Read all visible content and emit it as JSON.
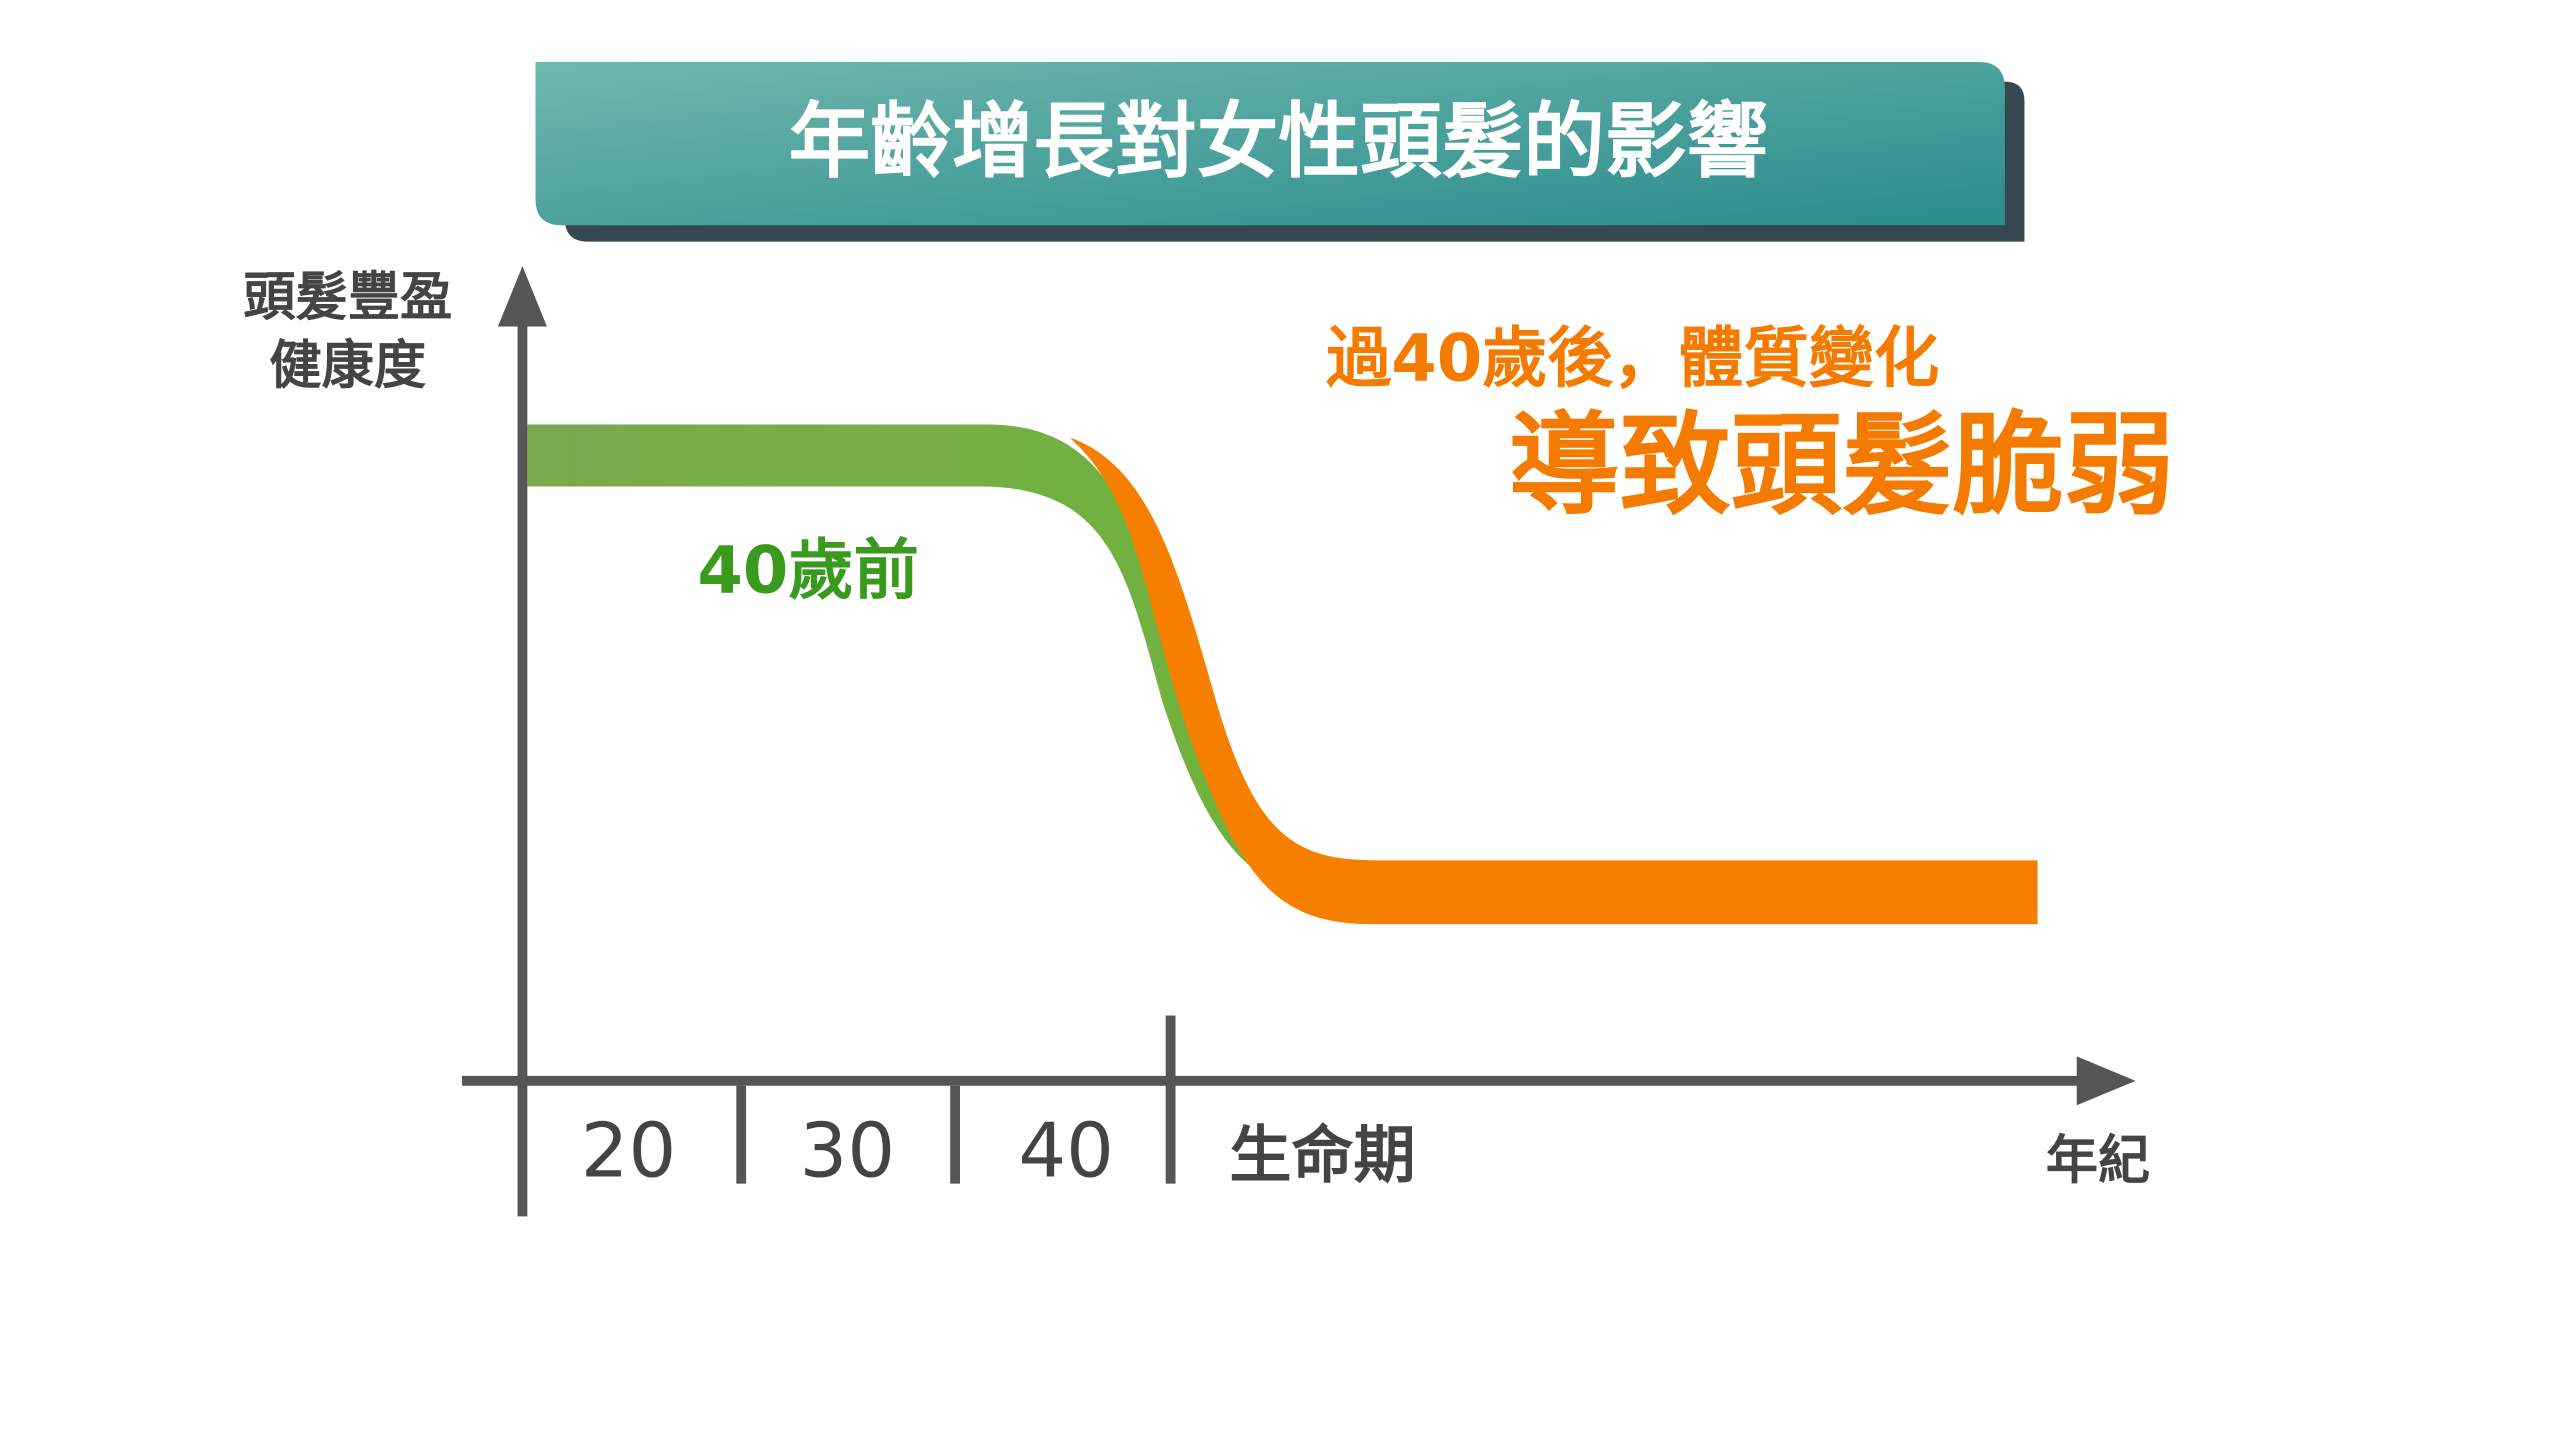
{
  "title": "年齡增長對女性頭髮的影響",
  "y_axis_label": [
    "頭髮豐盈",
    "健康度"
  ],
  "x_axis_label": "年紀",
  "x_ticks": [
    "20",
    "30",
    "40",
    "生命期"
  ],
  "before_label": "40歲前",
  "after_label": [
    "過40歲後，體質變化",
    "導致頭髮脆弱"
  ]
}
